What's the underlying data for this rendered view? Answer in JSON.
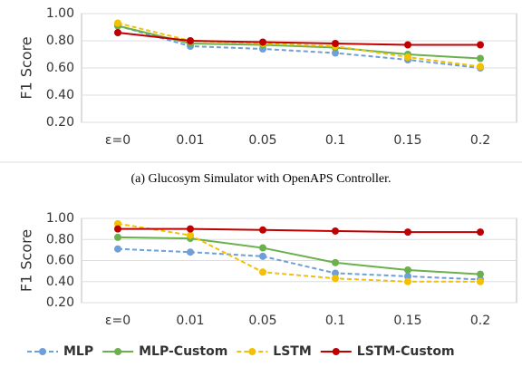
{
  "chart_data": [
    {
      "type": "line",
      "ylabel": "F1 Score",
      "caption": "(a) Glucosym Simulator with OpenAPS Controller.",
      "categories": [
        "ε=0",
        "0.01",
        "0.05",
        "0.1",
        "0.15",
        "0.2"
      ],
      "ylim": [
        0.2,
        1.0
      ],
      "yticks": [
        {
          "value": 0.2,
          "label": "0.20"
        },
        {
          "value": 0.4,
          "label": "0.40"
        },
        {
          "value": 0.6,
          "label": "0.60"
        },
        {
          "value": 0.8,
          "label": "0.80"
        },
        {
          "value": 1.0,
          "label": "1.00"
        }
      ],
      "series": [
        {
          "color": "#6f9fd8",
          "dash": true,
          "values": [
            0.91,
            0.76,
            0.74,
            0.71,
            0.66,
            0.6
          ]
        },
        {
          "color": "#6ab04c",
          "dash": false,
          "values": [
            0.91,
            0.78,
            0.77,
            0.75,
            0.7,
            0.67
          ]
        },
        {
          "color": "#f5c000",
          "dash": true,
          "values": [
            0.93,
            0.8,
            0.78,
            0.76,
            0.68,
            0.61
          ]
        },
        {
          "color": "#c00000",
          "dash": false,
          "values": [
            0.86,
            0.8,
            0.79,
            0.78,
            0.77,
            0.77
          ]
        }
      ]
    },
    {
      "type": "line",
      "ylabel": "F1 Score",
      "categories": [
        "ε=0",
        "0.01",
        "0.05",
        "0.1",
        "0.15",
        "0.2"
      ],
      "ylim": [
        0.2,
        1.0
      ],
      "yticks": [
        {
          "value": 0.2,
          "label": "0.20"
        },
        {
          "value": 0.4,
          "label": "0.40"
        },
        {
          "value": 0.6,
          "label": "0.60"
        },
        {
          "value": 0.8,
          "label": "0.80"
        },
        {
          "value": 1.0,
          "label": "1.00"
        }
      ],
      "series": [
        {
          "name": "MLP",
          "color": "#6f9fd8",
          "dash": true,
          "values": [
            0.71,
            0.68,
            0.64,
            0.48,
            0.45,
            0.42
          ]
        },
        {
          "name": "MLP-Custom",
          "color": "#6ab04c",
          "dash": false,
          "values": [
            0.82,
            0.81,
            0.72,
            0.58,
            0.51,
            0.47
          ]
        },
        {
          "name": "LSTM",
          "color": "#f5c000",
          "dash": true,
          "values": [
            0.95,
            0.84,
            0.49,
            0.43,
            0.4,
            0.4
          ]
        },
        {
          "name": "LSTM-Custom",
          "color": "#c00000",
          "dash": false,
          "values": [
            0.9,
            0.9,
            0.89,
            0.88,
            0.87,
            0.87
          ]
        }
      ]
    }
  ]
}
